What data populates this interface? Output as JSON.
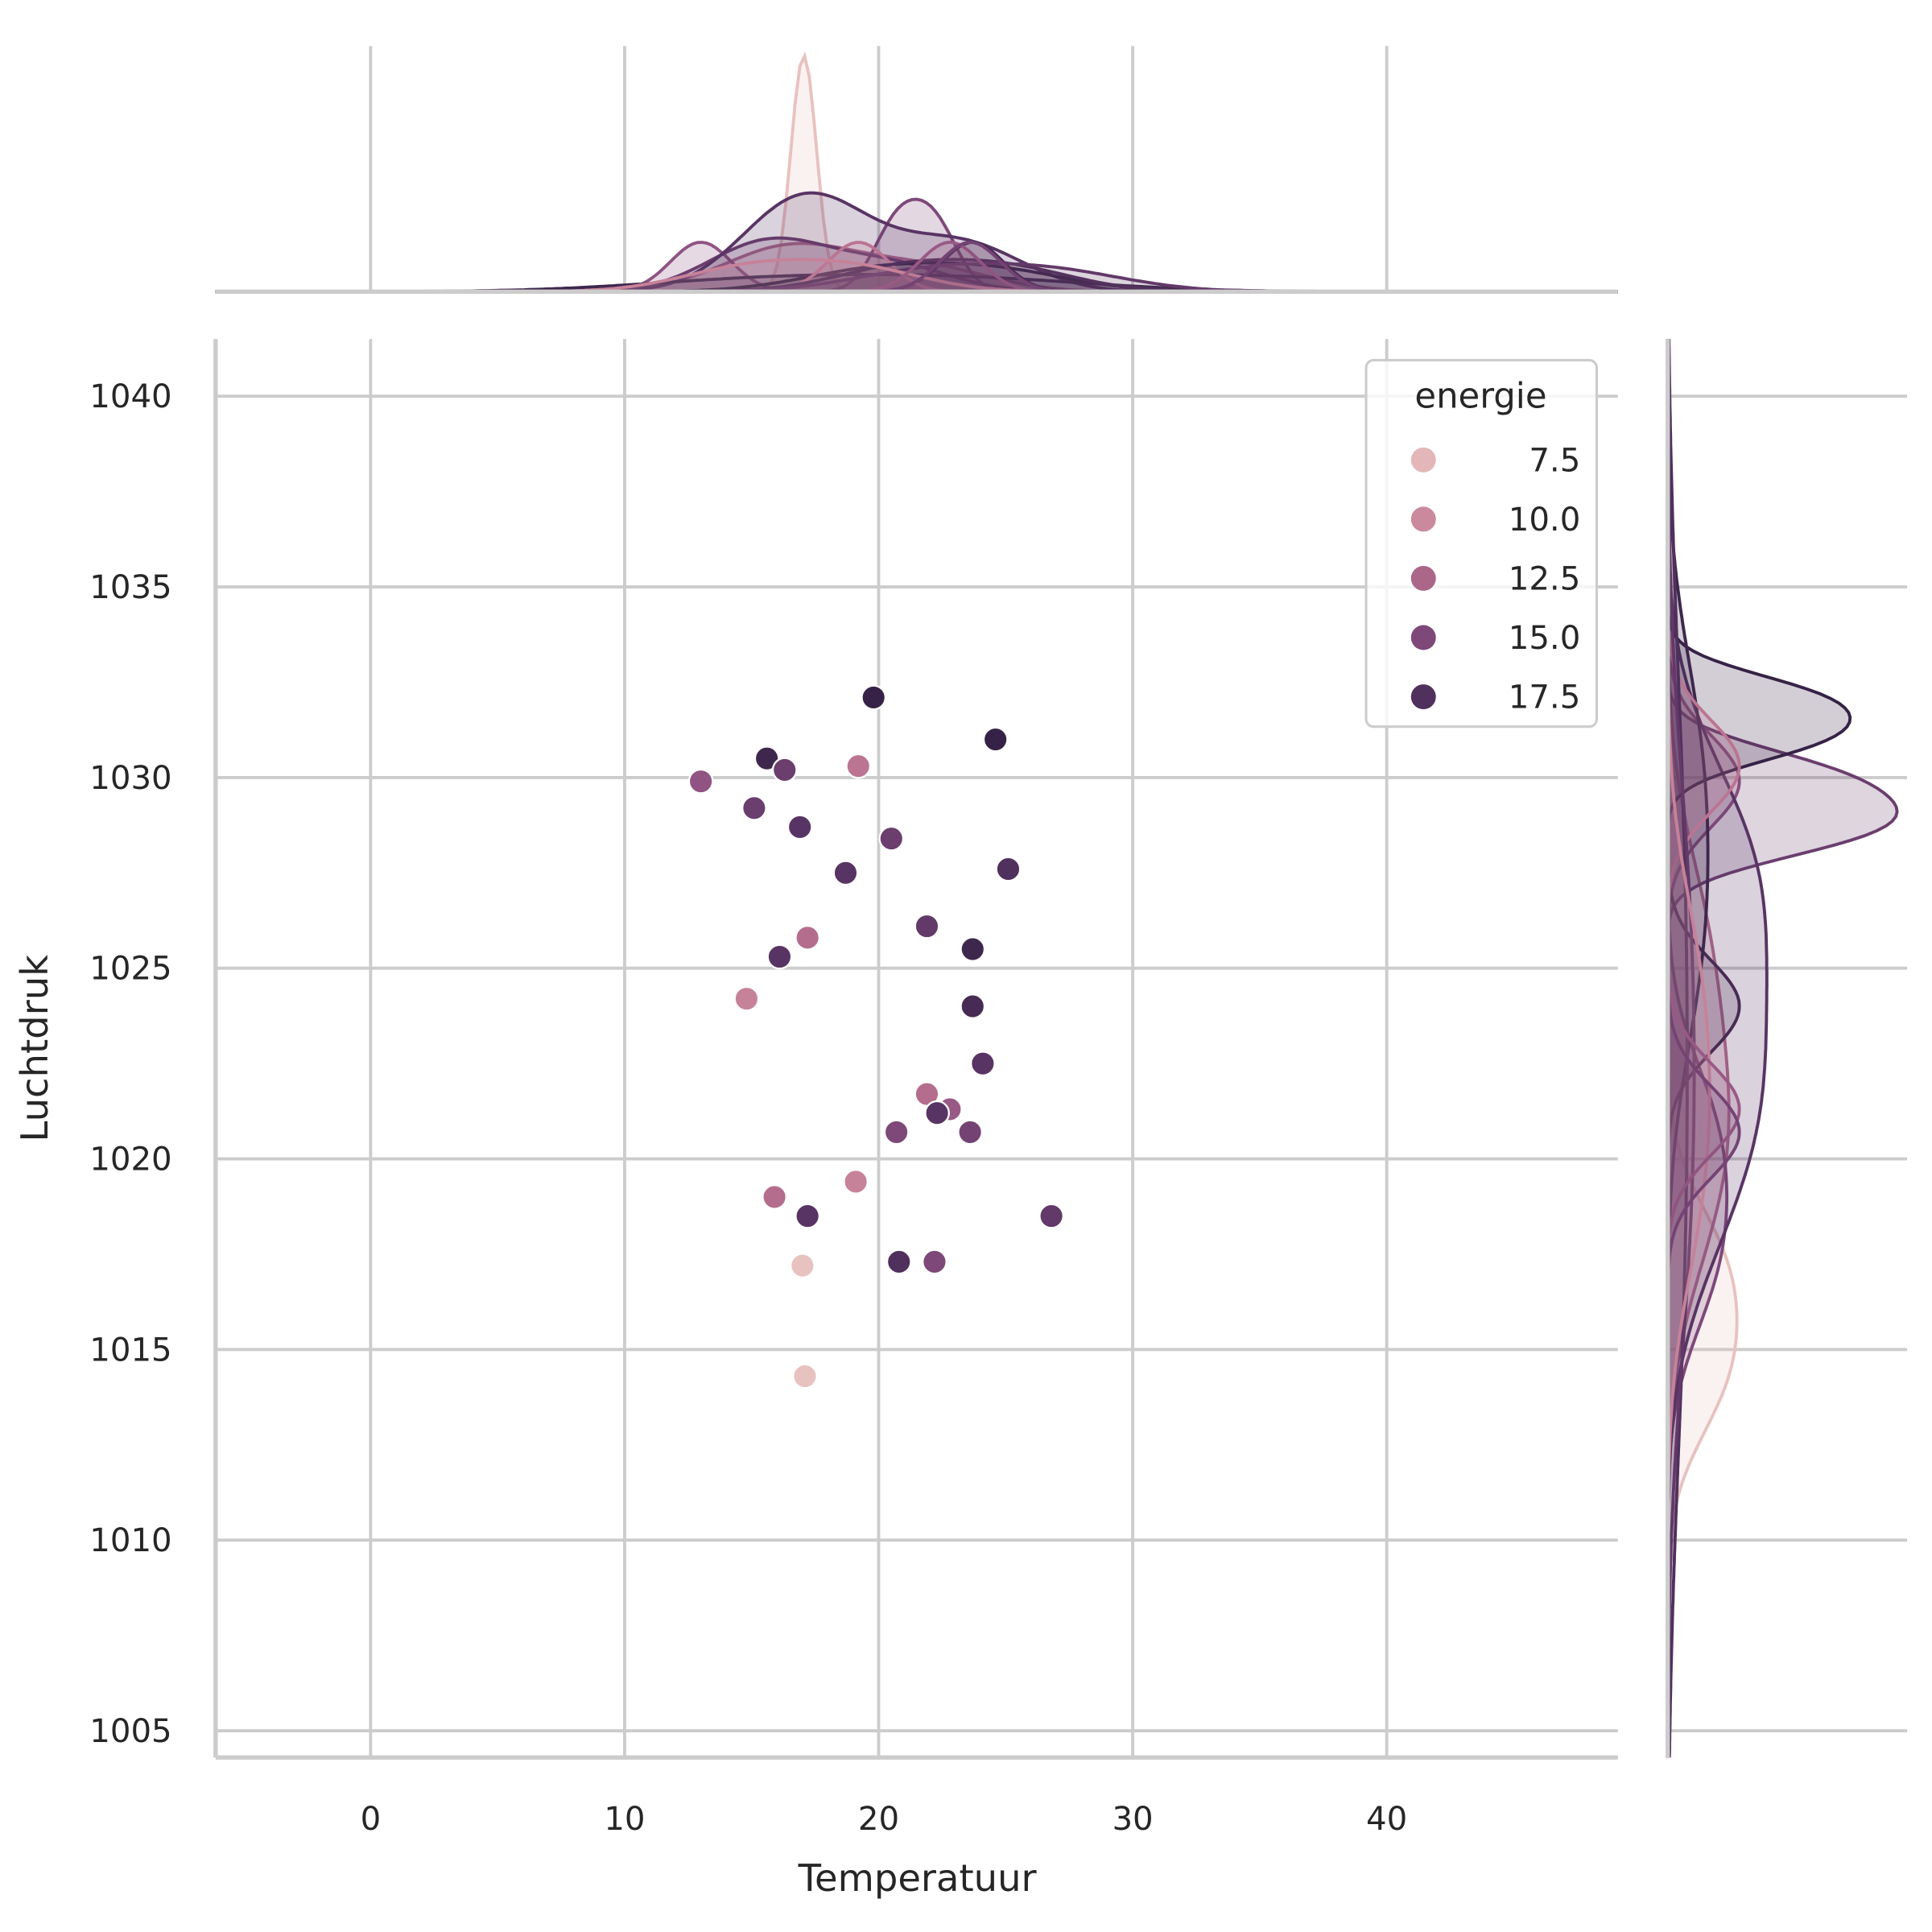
{
  "chart_data": {
    "type": "scatter",
    "title": "",
    "xlabel": "Temperatuur",
    "ylabel": "Luchtdruk",
    "xlim": [
      -6.1,
      49.1
    ],
    "ylim": [
      1004.3,
      1041.5
    ],
    "xticks": [
      0,
      10,
      20,
      30,
      40
    ],
    "yticks": [
      1005,
      1010,
      1015,
      1020,
      1025,
      1030,
      1035,
      1040
    ],
    "grid": true,
    "marginals": "kde per hue level, top (Temperatuur) and right (Luchtdruk)",
    "legend": {
      "title": "energie",
      "placement": "top-right",
      "entries": [
        {
          "label": "7.5",
          "value": 7.5
        },
        {
          "label": "10.0",
          "value": 10.0
        },
        {
          "label": "12.5",
          "value": 12.5
        },
        {
          "label": "15.0",
          "value": 15.0
        },
        {
          "label": "17.5",
          "value": 17.5
        }
      ]
    },
    "hue_range": [
      6.5,
      19.5
    ],
    "palette": [
      "#ecccc5",
      "#d596a5",
      "#b9718f",
      "#8b4f80",
      "#5a3565",
      "#2d1e3e"
    ],
    "points": [
      {
        "x": 19.8,
        "y": 1032.1,
        "energie": 19
      },
      {
        "x": 24.6,
        "y": 1031.0,
        "energie": 19
      },
      {
        "x": 15.6,
        "y": 1030.5,
        "energie": 18.5
      },
      {
        "x": 16.3,
        "y": 1030.2,
        "energie": 16
      },
      {
        "x": 19.2,
        "y": 1030.3,
        "energie": 11.5
      },
      {
        "x": 13.0,
        "y": 1029.9,
        "energie": 14
      },
      {
        "x": 15.1,
        "y": 1029.2,
        "energie": 16
      },
      {
        "x": 16.9,
        "y": 1028.7,
        "energie": 17
      },
      {
        "x": 20.5,
        "y": 1028.4,
        "energie": 16
      },
      {
        "x": 18.7,
        "y": 1027.5,
        "energie": 17
      },
      {
        "x": 25.1,
        "y": 1027.6,
        "energie": 17.5
      },
      {
        "x": 17.2,
        "y": 1025.8,
        "energie": 12
      },
      {
        "x": 16.1,
        "y": 1025.3,
        "energie": 17
      },
      {
        "x": 21.9,
        "y": 1026.1,
        "energie": 16.5
      },
      {
        "x": 23.7,
        "y": 1025.5,
        "energie": 18.5
      },
      {
        "x": 14.8,
        "y": 1024.2,
        "energie": 10.5
      },
      {
        "x": 23.7,
        "y": 1024.0,
        "energie": 18
      },
      {
        "x": 24.1,
        "y": 1022.5,
        "energie": 17
      },
      {
        "x": 21.9,
        "y": 1021.7,
        "energie": 12
      },
      {
        "x": 22.8,
        "y": 1021.3,
        "energie": 13.5
      },
      {
        "x": 22.3,
        "y": 1021.2,
        "energie": 17
      },
      {
        "x": 20.7,
        "y": 1020.7,
        "energie": 15
      },
      {
        "x": 23.6,
        "y": 1020.7,
        "energie": 15.5
      },
      {
        "x": 19.1,
        "y": 1019.4,
        "energie": 10.5
      },
      {
        "x": 15.9,
        "y": 1019.0,
        "energie": 12
      },
      {
        "x": 17.2,
        "y": 1018.5,
        "energie": 17
      },
      {
        "x": 26.8,
        "y": 1018.5,
        "energie": 16.5
      },
      {
        "x": 17.0,
        "y": 1017.2,
        "energie": 7
      },
      {
        "x": 20.8,
        "y": 1017.3,
        "energie": 17.5
      },
      {
        "x": 22.2,
        "y": 1017.3,
        "energie": 15
      },
      {
        "x": 17.1,
        "y": 1014.3,
        "energie": 7
      }
    ]
  }
}
